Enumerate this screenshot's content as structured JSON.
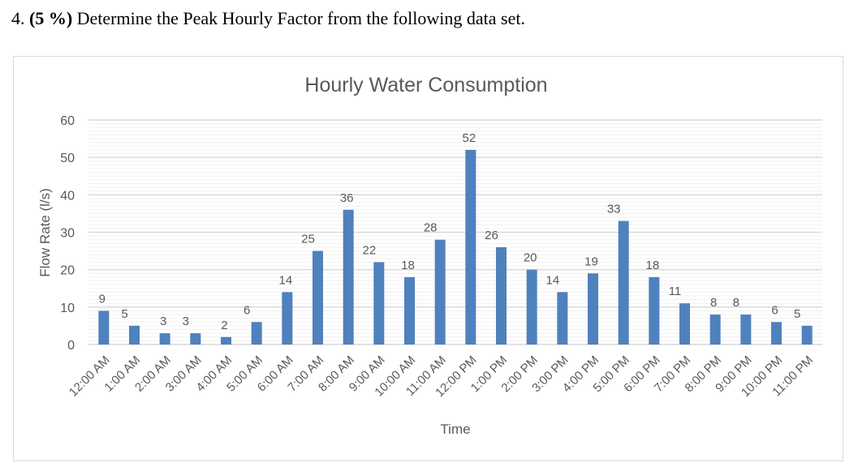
{
  "question": {
    "number": "4.",
    "weight": "(5 %)",
    "text": "Determine the Peak Hourly Factor from the following data set."
  },
  "chart_data": {
    "type": "bar",
    "title": "Hourly Water Consumption",
    "xlabel": "Time",
    "ylabel": "Flow Rate (l/s)",
    "ylim": [
      0,
      60
    ],
    "yticks": [
      0,
      10,
      20,
      30,
      40,
      50,
      60
    ],
    "grid": {
      "major": 10,
      "minor": 1
    },
    "bar_color": "#4f81bd",
    "data_labels": true,
    "categories": [
      "12:00 AM",
      "1:00 AM",
      "2:00 AM",
      "3:00 AM",
      "4:00 AM",
      "5:00 AM",
      "6:00 AM",
      "7:00 AM",
      "8:00 AM",
      "9:00 AM",
      "10:00 AM",
      "11:00 AM",
      "12:00 PM",
      "1:00 PM",
      "2:00 PM",
      "3:00 PM",
      "4:00 PM",
      "5:00 PM",
      "6:00 PM",
      "7:00 PM",
      "8:00 PM",
      "9:00 PM",
      "10:00 PM",
      "11:00 PM"
    ],
    "values": [
      9,
      5,
      3,
      3,
      2,
      6,
      14,
      25,
      36,
      22,
      18,
      28,
      52,
      26,
      20,
      14,
      19,
      33,
      18,
      11,
      8,
      8,
      6,
      5
    ]
  }
}
